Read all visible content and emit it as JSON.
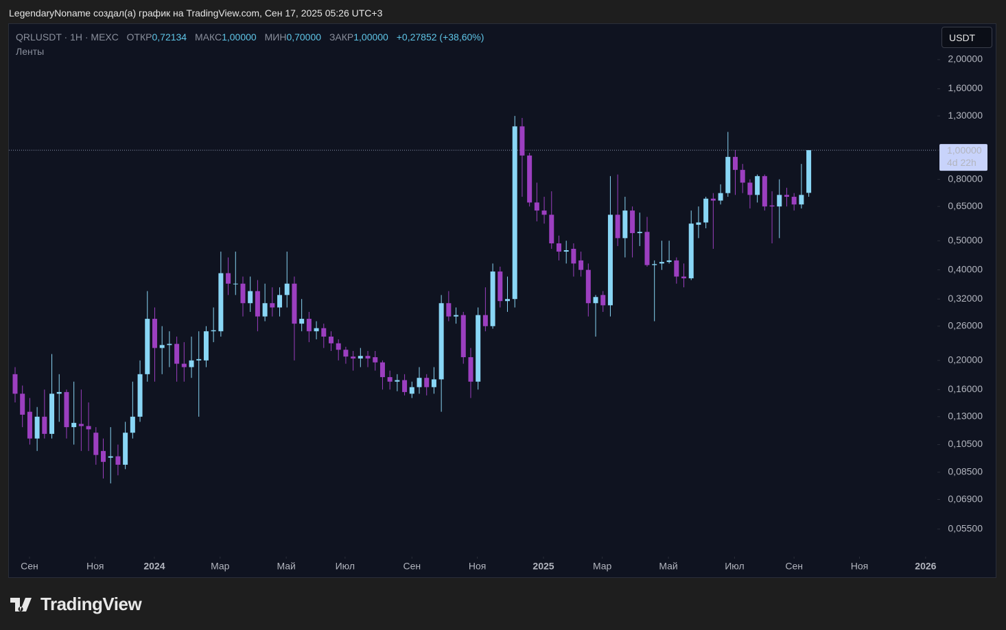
{
  "header": {
    "credit": "LegendaryNoname создал(а) график на TradingView.com, Сен 17, 2025 05:26 UTC+3"
  },
  "legend": {
    "symbol": "QRLUSDT · 1Н · MEXC",
    "open_label": "ОТКР",
    "open": "0,72134",
    "high_label": "МАКС",
    "high": "1,00000",
    "low_label": "МИН",
    "low": "0,70000",
    "close_label": "ЗАКР",
    "close": "1,00000",
    "change": "+0,27852 (+38,60%)",
    "indicator": "Ленты"
  },
  "currency_button": "USDT",
  "footer": {
    "logo": "TradingView"
  },
  "chart_data": {
    "type": "candlestick",
    "log_scale": true,
    "up_color": "#89d6f5",
    "down_color": "#9c3fc0",
    "xlim": [
      -0.84,
      125.5
    ],
    "ylim": [
      0.045,
      2.6
    ],
    "yticks": [
      {
        "value": 2.0,
        "label": "2,00000"
      },
      {
        "value": 1.6,
        "label": "1,60000"
      },
      {
        "value": 1.3,
        "label": "1,30000"
      },
      {
        "value": 1.0,
        "label": "1,00000"
      },
      {
        "value": 0.8,
        "label": "0,80000"
      },
      {
        "value": 0.65,
        "label": "0,65000"
      },
      {
        "value": 0.5,
        "label": "0,50000"
      },
      {
        "value": 0.4,
        "label": "0,40000"
      },
      {
        "value": 0.32,
        "label": "0,32000"
      },
      {
        "value": 0.26,
        "label": "0,26000"
      },
      {
        "value": 0.2,
        "label": "0,20000"
      },
      {
        "value": 0.16,
        "label": "0,16000"
      },
      {
        "value": 0.13,
        "label": "0,13000"
      },
      {
        "value": 0.105,
        "label": "0,10500"
      },
      {
        "value": 0.085,
        "label": "0,08500"
      },
      {
        "value": 0.069,
        "label": "0,06900"
      },
      {
        "value": 0.055,
        "label": "0,05500"
      }
    ],
    "xticks": [
      {
        "value": 1.96,
        "label": "Сен"
      },
      {
        "value": 10.9,
        "label": "Ноя"
      },
      {
        "value": 18.95,
        "label": "2024"
      },
      {
        "value": 27.9,
        "label": "Мар"
      },
      {
        "value": 36.9,
        "label": "Май"
      },
      {
        "value": 44.9,
        "label": "Июл"
      },
      {
        "value": 54,
        "label": "Сен"
      },
      {
        "value": 62.9,
        "label": "Ноя"
      },
      {
        "value": 71.9,
        "label": "2025"
      },
      {
        "value": 79.9,
        "label": "Мар"
      },
      {
        "value": 88.9,
        "label": "Май"
      },
      {
        "value": 97.9,
        "label": "Июл"
      },
      {
        "value": 106,
        "label": "Сен"
      },
      {
        "value": 114.9,
        "label": "Ноя"
      },
      {
        "value": 123.9,
        "label": "2026"
      }
    ],
    "last_price": {
      "value": 1.0,
      "label": "1,00000"
    },
    "countdown": "4d 22h",
    "candles": {
      "x": [
        0,
        1,
        2,
        3,
        4,
        5,
        6,
        7,
        8,
        9,
        10,
        11,
        12,
        13,
        14,
        15,
        16,
        17,
        18,
        19,
        20,
        21,
        22,
        23,
        24,
        25,
        26,
        27,
        28,
        29,
        30,
        31,
        32,
        33,
        34,
        35,
        36,
        37,
        38,
        39,
        40,
        41,
        42,
        43,
        44,
        45,
        46,
        47,
        48,
        49,
        50,
        51,
        52,
        53,
        54,
        55,
        56,
        57,
        58,
        59,
        60,
        61,
        62,
        63,
        64,
        65,
        66,
        67,
        68,
        69,
        70,
        71,
        72,
        73,
        74,
        75,
        76,
        77,
        78,
        79,
        80,
        81,
        82,
        83,
        84,
        85,
        86,
        87,
        88,
        89,
        90,
        91,
        92,
        93,
        94,
        95,
        96,
        97,
        98,
        99,
        100,
        101,
        102,
        103,
        104,
        105,
        106,
        107,
        108
      ],
      "open": [
        0.18,
        0.155,
        0.135,
        0.11,
        0.13,
        0.114,
        0.155,
        0.157,
        0.12,
        0.123,
        0.121,
        0.115,
        0.1,
        0.095,
        0.096,
        0.09,
        0.115,
        0.13,
        0.18,
        0.275,
        0.22,
        0.225,
        0.227,
        0.195,
        0.19,
        0.2,
        0.2,
        0.25,
        0.25,
        0.39,
        0.36,
        0.36,
        0.31,
        0.34,
        0.28,
        0.31,
        0.3,
        0.33,
        0.36,
        0.265,
        0.275,
        0.25,
        0.256,
        0.24,
        0.228,
        0.217,
        0.206,
        0.203,
        0.207,
        0.205,
        0.197,
        0.176,
        0.17,
        0.172,
        0.155,
        0.163,
        0.175,
        0.163,
        0.173,
        0.31,
        0.28,
        0.283,
        0.205,
        0.17,
        0.283,
        0.26,
        0.395,
        0.315,
        0.32,
        1.2,
        0.96,
        0.67,
        0.63,
        0.61,
        0.49,
        0.46,
        0.47,
        0.43,
        0.4,
        0.31,
        0.33,
        0.305,
        0.61,
        0.51,
        0.63,
        0.53,
        0.535,
        0.415,
        0.42,
        0.425,
        0.43,
        0.38,
        0.375,
        0.565,
        0.575,
        0.69,
        0.68,
        0.72,
        0.95,
        0.86,
        0.78,
        0.71,
        0.82,
        0.655,
        0.65,
        0.71,
        0.7,
        0.66,
        0.72134
      ],
      "high": [
        0.19,
        0.165,
        0.15,
        0.14,
        0.16,
        0.21,
        0.18,
        0.16,
        0.17,
        0.16,
        0.145,
        0.12,
        0.11,
        0.12,
        0.105,
        0.125,
        0.17,
        0.2,
        0.34,
        0.3,
        0.26,
        0.25,
        0.24,
        0.23,
        0.24,
        0.25,
        0.26,
        0.3,
        0.46,
        0.44,
        0.46,
        0.38,
        0.38,
        0.37,
        0.36,
        0.35,
        0.35,
        0.46,
        0.38,
        0.32,
        0.29,
        0.27,
        0.265,
        0.25,
        0.235,
        0.222,
        0.215,
        0.22,
        0.215,
        0.215,
        0.2,
        0.185,
        0.18,
        0.18,
        0.17,
        0.19,
        0.18,
        0.19,
        0.33,
        0.34,
        0.3,
        0.29,
        0.22,
        0.3,
        0.35,
        0.42,
        0.41,
        0.38,
        1.3,
        1.28,
        0.98,
        0.78,
        0.7,
        0.73,
        0.52,
        0.5,
        0.49,
        0.46,
        0.42,
        0.33,
        0.34,
        0.82,
        0.83,
        0.7,
        0.65,
        0.62,
        0.6,
        0.43,
        0.5,
        0.5,
        0.44,
        0.42,
        0.63,
        0.65,
        0.7,
        0.72,
        0.77,
        1.15,
        1.0,
        0.9,
        0.8,
        0.83,
        0.83,
        0.73,
        0.8,
        0.75,
        0.72,
        0.9,
        1.0
      ],
      "low": [
        0.145,
        0.12,
        0.105,
        0.1,
        0.11,
        0.11,
        0.125,
        0.11,
        0.105,
        0.1,
        0.1,
        0.09,
        0.081,
        0.078,
        0.083,
        0.087,
        0.11,
        0.125,
        0.17,
        0.17,
        0.18,
        0.19,
        0.17,
        0.17,
        0.175,
        0.13,
        0.19,
        0.23,
        0.24,
        0.33,
        0.33,
        0.28,
        0.29,
        0.25,
        0.27,
        0.28,
        0.28,
        0.3,
        0.2,
        0.25,
        0.23,
        0.235,
        0.22,
        0.215,
        0.2,
        0.195,
        0.185,
        0.19,
        0.19,
        0.185,
        0.16,
        0.16,
        0.158,
        0.153,
        0.15,
        0.155,
        0.153,
        0.155,
        0.135,
        0.27,
        0.265,
        0.195,
        0.15,
        0.16,
        0.25,
        0.255,
        0.3,
        0.29,
        0.3,
        0.7,
        0.65,
        0.58,
        0.57,
        0.47,
        0.43,
        0.42,
        0.38,
        0.38,
        0.28,
        0.24,
        0.29,
        0.28,
        0.48,
        0.44,
        0.44,
        0.48,
        0.41,
        0.27,
        0.4,
        0.42,
        0.36,
        0.35,
        0.37,
        0.51,
        0.55,
        0.47,
        0.66,
        0.7,
        0.71,
        0.72,
        0.64,
        0.67,
        0.63,
        0.49,
        0.51,
        0.65,
        0.63,
        0.64,
        0.7
      ],
      "close": [
        0.155,
        0.132,
        0.11,
        0.13,
        0.114,
        0.155,
        0.157,
        0.12,
        0.124,
        0.121,
        0.118,
        0.097,
        0.092,
        0.096,
        0.09,
        0.115,
        0.13,
        0.18,
        0.275,
        0.22,
        0.225,
        0.227,
        0.195,
        0.19,
        0.2,
        0.202,
        0.25,
        0.252,
        0.39,
        0.36,
        0.36,
        0.31,
        0.34,
        0.28,
        0.31,
        0.3,
        0.33,
        0.36,
        0.265,
        0.275,
        0.25,
        0.256,
        0.24,
        0.228,
        0.217,
        0.206,
        0.203,
        0.207,
        0.203,
        0.197,
        0.176,
        0.17,
        0.172,
        0.157,
        0.163,
        0.175,
        0.163,
        0.173,
        0.31,
        0.28,
        0.283,
        0.205,
        0.17,
        0.283,
        0.26,
        0.395,
        0.315,
        0.32,
        1.2,
        0.96,
        0.67,
        0.63,
        0.61,
        0.49,
        0.46,
        0.465,
        0.42,
        0.4,
        0.31,
        0.325,
        0.305,
        0.61,
        0.51,
        0.63,
        0.53,
        0.535,
        0.415,
        0.418,
        0.425,
        0.43,
        0.38,
        0.375,
        0.57,
        0.575,
        0.69,
        0.68,
        0.72,
        0.95,
        0.86,
        0.78,
        0.71,
        0.82,
        0.65,
        0.65,
        0.71,
        0.7,
        0.66,
        0.71,
        1.0
      ]
    }
  }
}
